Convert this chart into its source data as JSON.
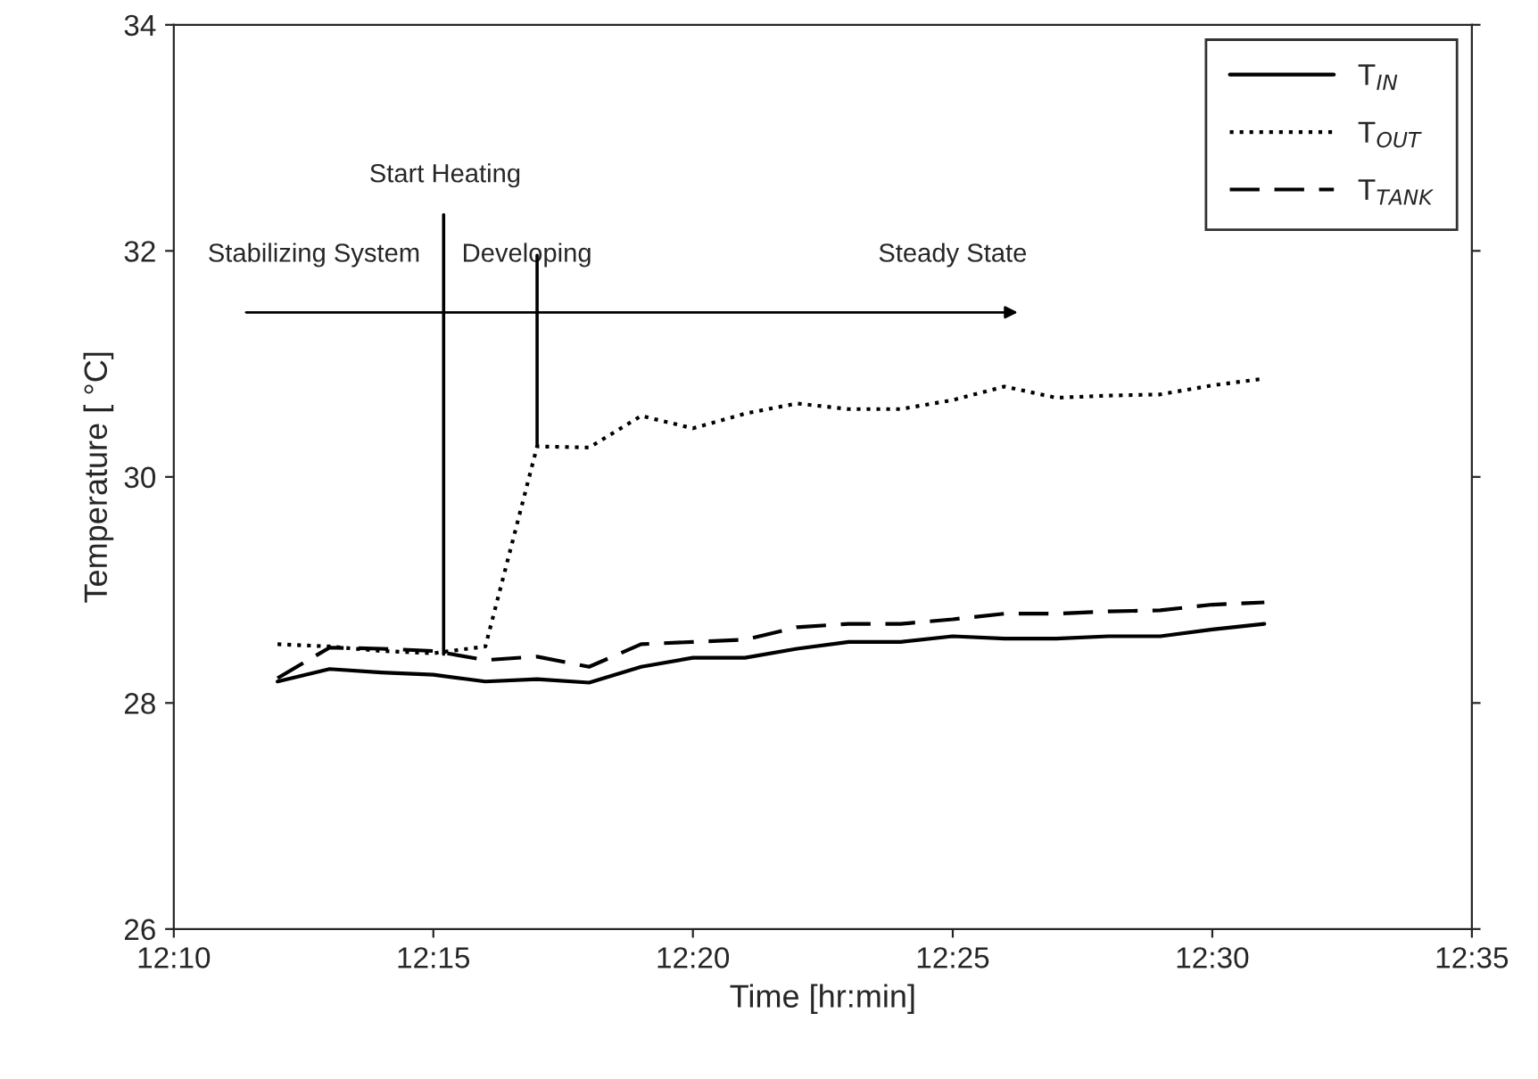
{
  "chart_data": {
    "type": "line",
    "xlabel": "Time [hr:min]",
    "ylabel": "Temperature [ °C]",
    "x": [
      12.2,
      12.2167,
      12.2333,
      12.25,
      12.2667,
      12.2833,
      12.3,
      12.3167,
      12.3333,
      12.35,
      12.3667,
      12.3833,
      12.4,
      12.4167,
      12.4333,
      12.45,
      12.4667,
      12.4833,
      12.5,
      12.5167
    ],
    "series": [
      {
        "name": "T$_{IN}$",
        "color": "#000000",
        "line_style": "solid",
        "values": [
          28.19,
          28.3,
          28.27,
          28.25,
          28.19,
          28.21,
          28.18,
          28.32,
          28.4,
          28.4,
          28.48,
          28.54,
          28.54,
          28.59,
          28.57,
          28.57,
          28.59,
          28.59,
          28.65,
          28.7
        ]
      },
      {
        "name": "T$_{OUT}$",
        "color": "#000000",
        "line_style": "dotted",
        "values": [
          28.52,
          28.5,
          28.46,
          28.44,
          28.5,
          30.27,
          30.26,
          30.54,
          30.43,
          30.56,
          30.65,
          30.6,
          30.6,
          30.68,
          30.8,
          30.7,
          30.72,
          30.73,
          30.81,
          30.87
        ]
      },
      {
        "name": "T$_{TANK}$",
        "color": "#000000",
        "line_style": "dashed",
        "values": [
          28.22,
          28.49,
          28.48,
          28.46,
          28.38,
          28.41,
          28.32,
          28.52,
          28.54,
          28.56,
          28.67,
          28.7,
          28.7,
          28.74,
          28.79,
          28.79,
          28.81,
          28.82,
          28.87,
          28.89
        ]
      }
    ],
    "xlim": [
      12.1667,
      12.5833
    ],
    "xticks": [
      {
        "value": 12.1667,
        "label": "12:10"
      },
      {
        "value": 12.25,
        "label": "12:15"
      },
      {
        "value": 12.3333,
        "label": "12:20"
      },
      {
        "value": 12.4167,
        "label": "12:25"
      },
      {
        "value": 12.5,
        "label": "12:30"
      },
      {
        "value": 12.5833,
        "label": "12:35"
      }
    ],
    "ylim": [
      26,
      34
    ],
    "yticks": [
      26,
      28,
      30,
      32,
      34
    ],
    "annotations": [
      {
        "text": "Start Heating",
        "x": 12.2533,
        "y": 28.43
      },
      {
        "text": "Developing",
        "x": 12.2833,
        "y": 30.27
      },
      "Stabilizing System",
      "Steady State"
    ],
    "legend": "top right",
    "grid": false,
    "marker": "none"
  }
}
